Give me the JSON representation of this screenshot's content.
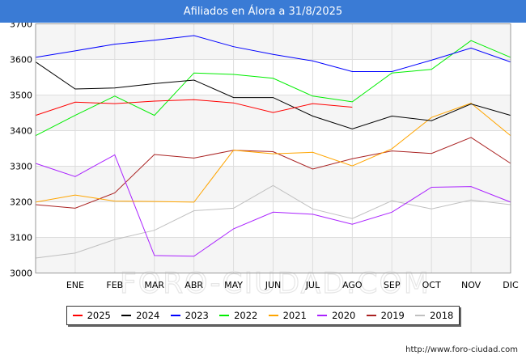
{
  "header": {
    "title": "Afiliados en Álora a 31/8/2025"
  },
  "footer": {
    "source": "http://www.foro-ciudad.com"
  },
  "watermark": "FORO-CIUDAD.COM",
  "colors": {
    "title_bar": "#3a7bd5",
    "plot_bg_band": "#f5f5f5",
    "grid": "#dddddd"
  },
  "chart_data": {
    "type": "line",
    "title": "Afiliados en Álora a 31/8/2025",
    "categories": [
      "",
      "ENE",
      "FEB",
      "MAR",
      "ABR",
      "MAY",
      "JUN",
      "JUL",
      "AGO",
      "SEP",
      "OCT",
      "NOV",
      "DIC"
    ],
    "ylim": [
      3000,
      3700
    ],
    "yticks": [
      3000,
      3100,
      3200,
      3300,
      3400,
      3500,
      3600,
      3700
    ],
    "grid": true,
    "legend_position": "bottom",
    "series": [
      {
        "name": "2025",
        "color": "#ff0000",
        "values": [
          3443,
          3480,
          3476,
          3483,
          3487,
          3478,
          3451,
          3476,
          3466,
          null,
          null,
          null,
          null
        ]
      },
      {
        "name": "2024",
        "color": "#000000",
        "values": [
          3593,
          3517,
          3520,
          3532,
          3542,
          3493,
          3493,
          3441,
          3405,
          3441,
          3428,
          3475,
          3443
        ]
      },
      {
        "name": "2023",
        "color": "#0000ff",
        "values": [
          3606,
          3624,
          3643,
          3654,
          3667,
          3636,
          3614,
          3596,
          3566,
          3566,
          3598,
          3632,
          3593
        ]
      },
      {
        "name": "2022",
        "color": "#00ee00",
        "values": [
          3386,
          3443,
          3497,
          3443,
          3562,
          3558,
          3547,
          3497,
          3481,
          3562,
          3572,
          3653,
          3606
        ]
      },
      {
        "name": "2021",
        "color": "#ffa500",
        "values": [
          3199,
          3219,
          3202,
          3201,
          3199,
          3345,
          3335,
          3339,
          3301,
          3349,
          3437,
          3477,
          3386
        ]
      },
      {
        "name": "2020",
        "color": "#aa22ff",
        "values": [
          3308,
          3271,
          3332,
          3049,
          3047,
          3124,
          3171,
          3165,
          3137,
          3171,
          3241,
          3243,
          3199
        ]
      },
      {
        "name": "2019",
        "color": "#aa2222",
        "values": [
          3192,
          3182,
          3225,
          3333,
          3323,
          3345,
          3341,
          3292,
          3321,
          3343,
          3336,
          3381,
          3308
        ]
      },
      {
        "name": "2018",
        "color": "#c0c0c0",
        "values": [
          3042,
          3056,
          3094,
          3120,
          3175,
          3182,
          3246,
          3180,
          3153,
          3203,
          3180,
          3205,
          3192
        ]
      }
    ]
  }
}
